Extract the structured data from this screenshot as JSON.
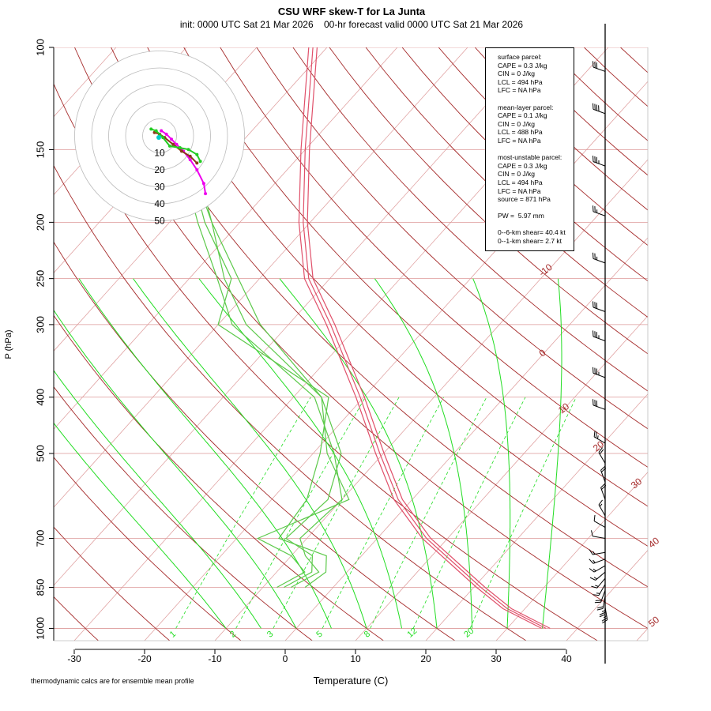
{
  "title": "CSU WRF skew-T for La Junta",
  "subtitle": "init: 0000 UTC Sat 21 Mar 2026    00-hr forecast valid 0000 UTC Sat 21 Mar 2026",
  "footnote": "thermodynamic calcs are for ensemble mean profile",
  "info_box": {
    "surface": [
      "surface parcel:",
      "CAPE = 0.3 J/kg",
      "CIN = 0 J/kg",
      "LCL = 494 hPa",
      "LFC = NA hPa"
    ],
    "mean_layer": [
      "mean-layer parcel:",
      "CAPE = 0.1 J/kg",
      "CIN = 0 J/kg",
      "LCL = 488 hPa",
      "LFC = NA hPa"
    ],
    "most_unstable": [
      "most-unstable parcel:",
      "CAPE = 0.3 J/kg",
      "CIN = 0 J/kg",
      "LCL = 494 hPa",
      "LFC = NA hPa",
      "source = 871 hPa"
    ],
    "pw": [
      "PW =  5.97 mm"
    ],
    "shear": [
      "0--6-km shear= 40.4 kt",
      "0--1-km shear= 2.7 kt"
    ]
  },
  "colors": {
    "temperature": "#e0506a",
    "dewpoint": "#5cc94a",
    "dry_adiabat": "#a52a2a",
    "moist_adiabat": "#22dd22",
    "mixing_ratio": "#22dd22",
    "isotherm": "#dd9999",
    "isobar": "#dd9999",
    "hodo_ring": "#bbbbbb",
    "hodo_magenta": "#ee00ee",
    "hodo_brown": "#8b3a1a",
    "hodo_green": "#22cc22",
    "hodo_cyan": "#00cccc"
  },
  "chart_data": {
    "type": "skew-t",
    "xlabel": "Temperature (C)",
    "ylabel": "P (hPa)",
    "pressure_ticks": [
      "100",
      "150",
      "200",
      "250",
      "300",
      "400",
      "500",
      "700",
      "850",
      "1000"
    ],
    "temp_ticks": [
      "-30",
      "-20",
      "-10",
      "0",
      "10",
      "20",
      "30",
      "40"
    ],
    "isotherm_labels": [
      "-10",
      "0",
      "10",
      "20",
      "30",
      "40",
      "50"
    ],
    "mixing_ratio_labels": [
      "1",
      "2",
      "3",
      "5",
      "8",
      "12",
      "20"
    ],
    "hodograph_ring_labels": [
      "10",
      "20",
      "30",
      "40",
      "50"
    ],
    "temperature_profile": [
      [
        1000,
        35.5
      ],
      [
        925,
        27.5
      ],
      [
        850,
        21
      ],
      [
        700,
        7
      ],
      [
        600,
        -2
      ],
      [
        500,
        -10.5
      ],
      [
        400,
        -20.5
      ],
      [
        300,
        -34
      ],
      [
        250,
        -43
      ],
      [
        200,
        -51
      ],
      [
        150,
        -60
      ],
      [
        100,
        -72
      ]
    ],
    "dewpoint_profiles": [
      {
        "member": "1",
        "points": [
          [
            850,
            -6
          ],
          [
            800,
            -4
          ],
          [
            750,
            -8
          ],
          [
            700,
            -11
          ],
          [
            600,
            -10
          ],
          [
            500,
            -17
          ],
          [
            400,
            -27
          ],
          [
            300,
            -48
          ],
          [
            250,
            -56
          ],
          [
            200,
            -66
          ],
          [
            150,
            -78
          ]
        ]
      },
      {
        "member": "2",
        "points": [
          [
            850,
            -4
          ],
          [
            800,
            -3
          ],
          [
            750,
            -5
          ],
          [
            700,
            -14
          ],
          [
            600,
            -15
          ],
          [
            500,
            -19
          ],
          [
            400,
            -25
          ],
          [
            300,
            -50
          ],
          [
            250,
            -54
          ],
          [
            200,
            -65
          ],
          [
            150,
            -77
          ]
        ]
      },
      {
        "member": "3",
        "points": [
          [
            850,
            -8
          ],
          [
            800,
            -6
          ],
          [
            750,
            -10
          ],
          [
            700,
            -17
          ],
          [
            600,
            -9
          ],
          [
            500,
            -18
          ],
          [
            400,
            -26
          ],
          [
            300,
            -44
          ],
          [
            250,
            -53
          ],
          [
            200,
            -64
          ],
          [
            150,
            -76
          ]
        ]
      },
      {
        "member": "4",
        "points": [
          [
            850,
            -7
          ],
          [
            800,
            -5
          ],
          [
            750,
            -7
          ],
          [
            700,
            -13
          ],
          [
            600,
            -12
          ],
          [
            500,
            -16
          ],
          [
            400,
            -26
          ],
          [
            300,
            -46
          ],
          [
            250,
            -55
          ],
          [
            200,
            -64
          ],
          [
            150,
            -77
          ]
        ]
      }
    ],
    "wind_barbs": [
      {
        "p": 920,
        "spd": 25,
        "dir": 170
      },
      {
        "p": 900,
        "spd": 25,
        "dir": 180
      },
      {
        "p": 880,
        "spd": 20,
        "dir": 190
      },
      {
        "p": 860,
        "spd": 20,
        "dir": 200
      },
      {
        "p": 840,
        "spd": 15,
        "dir": 210
      },
      {
        "p": 820,
        "spd": 15,
        "dir": 220
      },
      {
        "p": 800,
        "spd": 15,
        "dir": 230
      },
      {
        "p": 780,
        "spd": 15,
        "dir": 240
      },
      {
        "p": 760,
        "spd": 15,
        "dir": 250
      },
      {
        "p": 740,
        "spd": 15,
        "dir": 260
      },
      {
        "p": 700,
        "spd": 10,
        "dir": 280
      },
      {
        "p": 670,
        "spd": 10,
        "dir": 300
      },
      {
        "p": 640,
        "spd": 15,
        "dir": 330
      },
      {
        "p": 600,
        "spd": 20,
        "dir": 340
      },
      {
        "p": 560,
        "spd": 20,
        "dir": 340
      },
      {
        "p": 520,
        "spd": 20,
        "dir": 330
      },
      {
        "p": 480,
        "spd": 25,
        "dir": 300
      },
      {
        "p": 420,
        "spd": 30,
        "dir": 290
      },
      {
        "p": 370,
        "spd": 35,
        "dir": 290
      },
      {
        "p": 320,
        "spd": 35,
        "dir": 290
      },
      {
        "p": 285,
        "spd": 30,
        "dir": 290
      },
      {
        "p": 235,
        "spd": 25,
        "dir": 290
      },
      {
        "p": 195,
        "spd": 25,
        "dir": 290
      },
      {
        "p": 160,
        "spd": 35,
        "dir": 290
      },
      {
        "p": 130,
        "spd": 40,
        "dir": 290
      },
      {
        "p": 110,
        "spd": 30,
        "dir": 290
      }
    ],
    "hodograph": {
      "center": [
        0,
        0
      ],
      "members": [
        {
          "color": "magenta",
          "points": [
            [
              1,
              3
            ],
            [
              4,
              1
            ],
            [
              7,
              -2
            ],
            [
              10,
              -5
            ],
            [
              14,
              -9
            ],
            [
              18,
              -14
            ],
            [
              22,
              -20
            ],
            [
              26,
              -28
            ],
            [
              27,
              -34
            ]
          ]
        },
        {
          "color": "brown",
          "points": [
            [
              -3,
              2
            ],
            [
              0,
              1
            ],
            [
              3,
              -1
            ],
            [
              8,
              -5
            ],
            [
              13,
              -9
            ],
            [
              18,
              -12
            ],
            [
              22,
              -16
            ]
          ]
        },
        {
          "color": "green",
          "points": [
            [
              -5,
              4
            ],
            [
              -2,
              3
            ],
            [
              2,
              -1
            ],
            [
              6,
              -6
            ],
            [
              12,
              -7
            ],
            [
              17,
              -8
            ],
            [
              22,
              -11
            ],
            [
              24,
              -15
            ]
          ]
        }
      ]
    }
  }
}
